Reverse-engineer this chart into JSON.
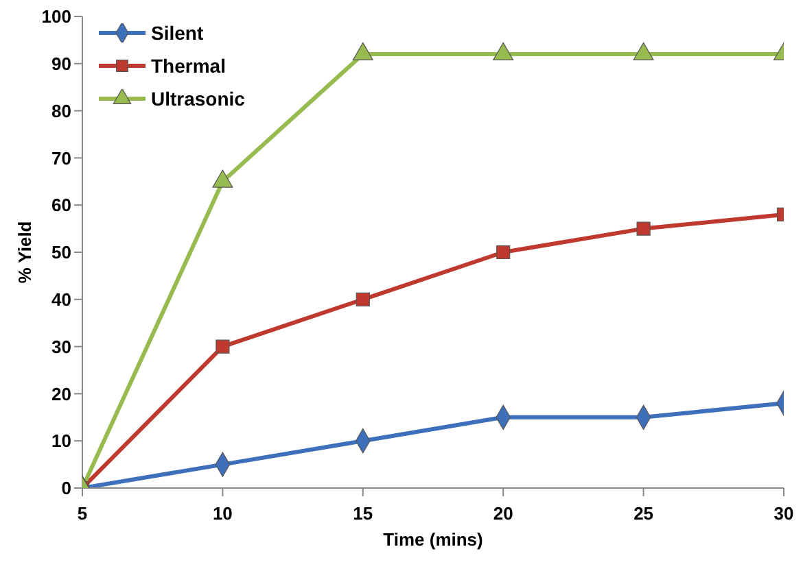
{
  "chart_data": {
    "type": "line",
    "xlabel": "Time (mins)",
    "ylabel": "% Yield",
    "x": [
      5,
      10,
      15,
      20,
      25,
      30
    ],
    "series": [
      {
        "name": "Silent",
        "color": "#3d6fba",
        "marker": "diamond",
        "values": [
          0,
          5,
          10,
          15,
          15,
          18
        ]
      },
      {
        "name": "Thermal",
        "color": "#c0392f",
        "marker": "square",
        "values": [
          0,
          30,
          40,
          50,
          55,
          58
        ]
      },
      {
        "name": "Ultrasonic",
        "color": "#98bb50",
        "marker": "triangle",
        "values": [
          0,
          65,
          92,
          92,
          92,
          92
        ]
      }
    ],
    "xlim": [
      5,
      30
    ],
    "xticks": [
      5,
      10,
      15,
      20,
      25,
      30
    ],
    "ylim": [
      0,
      100
    ],
    "yticks": [
      0,
      10,
      20,
      30,
      40,
      50,
      60,
      70,
      80,
      90,
      100
    ],
    "grid": false,
    "legend": "top left",
    "line_style": "solid"
  }
}
